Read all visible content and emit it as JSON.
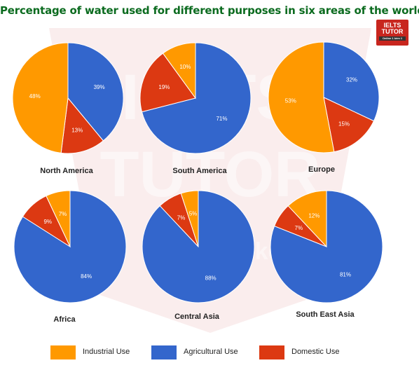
{
  "title": "Percentage of water used for different purposes in six areas of the world.",
  "logo": {
    "line1": "IELTS",
    "line2": "TUTOR",
    "line3": "Online 1 kèm 1"
  },
  "watermark": {
    "line1": "IELTS",
    "line2": "TUTOR",
    "line3": "Online 1 kèm 1"
  },
  "colors": {
    "industrial": "#FF9900",
    "agricultural": "#3366CC",
    "domestic": "#DC3912"
  },
  "legend": [
    {
      "key": "industrial",
      "label": "Industrial Use"
    },
    {
      "key": "agricultural",
      "label": "Agricultural Use"
    },
    {
      "key": "domestic",
      "label": "Domestic Use"
    }
  ],
  "chart_data": [
    {
      "type": "pie",
      "title": "North America",
      "slices": [
        {
          "label": "Agricultural Use",
          "value": 39
        },
        {
          "label": "Domestic Use",
          "value": 13
        },
        {
          "label": "Industrial Use",
          "value": 48
        }
      ]
    },
    {
      "type": "pie",
      "title": "South America",
      "slices": [
        {
          "label": "Agricultural Use",
          "value": 71
        },
        {
          "label": "Domestic Use",
          "value": 19
        },
        {
          "label": "Industrial Use",
          "value": 10
        }
      ]
    },
    {
      "type": "pie",
      "title": "Europe",
      "slices": [
        {
          "label": "Agricultural Use",
          "value": 32
        },
        {
          "label": "Domestic Use",
          "value": 15
        },
        {
          "label": "Industrial Use",
          "value": 53
        }
      ]
    },
    {
      "type": "pie",
      "title": "Africa",
      "slices": [
        {
          "label": "Agricultural Use",
          "value": 84
        },
        {
          "label": "Domestic Use",
          "value": 9
        },
        {
          "label": "Industrial Use",
          "value": 7
        }
      ]
    },
    {
      "type": "pie",
      "title": "Central Asia",
      "slices": [
        {
          "label": "Agricultural Use",
          "value": 88
        },
        {
          "label": "Domestic Use",
          "value": 7
        },
        {
          "label": "Industrial Use",
          "value": 5
        }
      ]
    },
    {
      "type": "pie",
      "title": "South East Asia",
      "slices": [
        {
          "label": "Agricultural Use",
          "value": 81
        },
        {
          "label": "Domestic Use",
          "value": 7
        },
        {
          "label": "Industrial Use",
          "value": 12
        }
      ]
    }
  ]
}
